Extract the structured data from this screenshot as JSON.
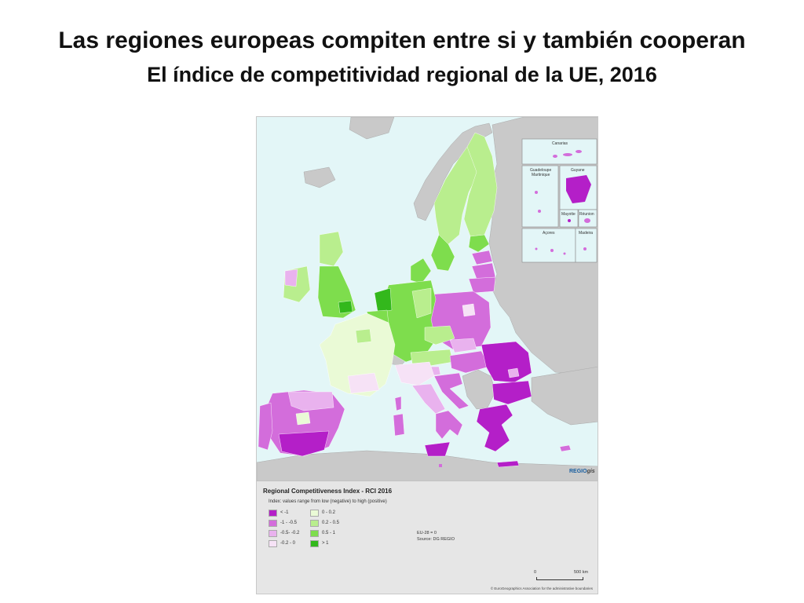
{
  "slide": {
    "title": "Las regiones europeas compiten entre si y también cooperan",
    "subtitle": "El índice de competitividad regional de la UE, 2016"
  },
  "map": {
    "insets": {
      "canarias": "Canarias",
      "guadeloupe": "Guadeloupe",
      "martinique": "Martinique",
      "guyane": "Guyane",
      "mayotte": "Mayotte",
      "reunion": "Réunion",
      "acores": "Açores",
      "madeira": "Madeira"
    },
    "logo": {
      "regio": "REGIO",
      "gis": "gis"
    }
  },
  "legend": {
    "title": "Regional Competitiveness Index - RCI 2016",
    "subtitle": "Index: values range from low (negative) to high (positive)",
    "items": [
      {
        "label": "< -1",
        "color": "#b41fc8"
      },
      {
        "label": "-1 - -0.5",
        "color": "#d36ddb"
      },
      {
        "label": "-0.5- -0.2",
        "color": "#e9b2ee"
      },
      {
        "label": "-0.2 - 0",
        "color": "#f6e2f6"
      },
      {
        "label": "0 - 0.2",
        "color": "#eafad6"
      },
      {
        "label": "0.2 - 0.5",
        "color": "#b9ee8e"
      },
      {
        "label": "0.5 - 1",
        "color": "#7edd4d"
      },
      {
        "label": "> 1",
        "color": "#33b81c"
      }
    ],
    "note1": "EU-28 = 0",
    "note2": "Source: DG REGIO",
    "scale_zero": "0",
    "scale_max": "500 km",
    "copyright": "© EuroGeographics Association for the administrative boundaries"
  },
  "colors": {
    "sea": "#e3f6f7",
    "non_eu_land": "#c9c9c9"
  }
}
